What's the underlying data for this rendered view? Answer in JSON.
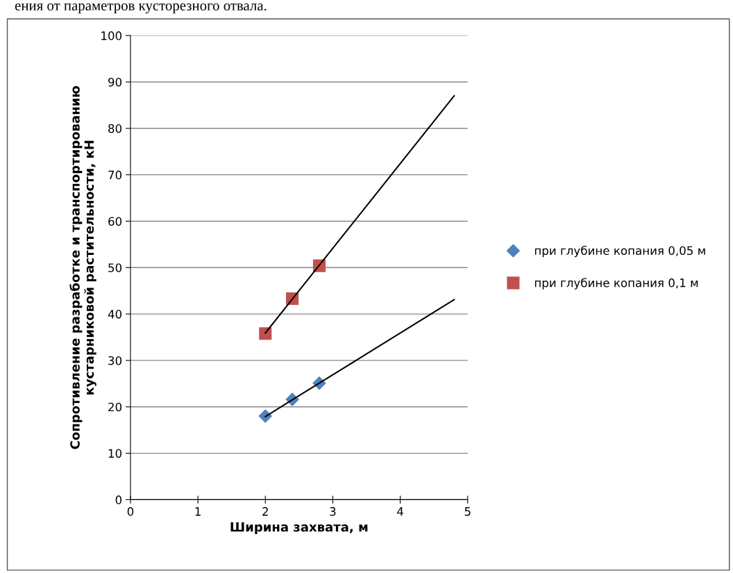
{
  "chart_data": {
    "type": "scatter",
    "xlabel": "Ширина захвата, м",
    "ylabel": "Сопротивление разработке и транспортированию\nкустарниковой растительности, кН",
    "annotations": [
      "ения от параметров кусторезного отвала."
    ],
    "x": [
      2,
      2.4,
      2.8,
      4.8
    ],
    "series": [
      {
        "name": "при глубине копания 0,05 м",
        "color": "#4f81bd",
        "marker": "diamond",
        "values": [
          18,
          21.6,
          25.1,
          null
        ]
      },
      {
        "name": "при глубине копания 0,1 м",
        "color": "#c0504d",
        "marker": "square",
        "values": [
          35.8,
          43.3,
          50.4,
          null
        ]
      },
      {
        "type": "line",
        "color": "#000000",
        "marker": "none",
        "values": [
          17.9,
          21.5,
          25.1,
          43.1
        ]
      },
      {
        "type": "line",
        "color": "#000000",
        "marker": "none",
        "values": [
          35.9,
          43.2,
          50.5,
          87
        ]
      }
    ],
    "xlim": [
      0,
      5
    ],
    "xticks": [
      0,
      1,
      2,
      3,
      4,
      5
    ],
    "ylim": [
      0,
      100
    ],
    "yticks": [
      0,
      10,
      20,
      30,
      40,
      50,
      60,
      70,
      80,
      90,
      100
    ],
    "grid": "y",
    "legend": "right"
  }
}
